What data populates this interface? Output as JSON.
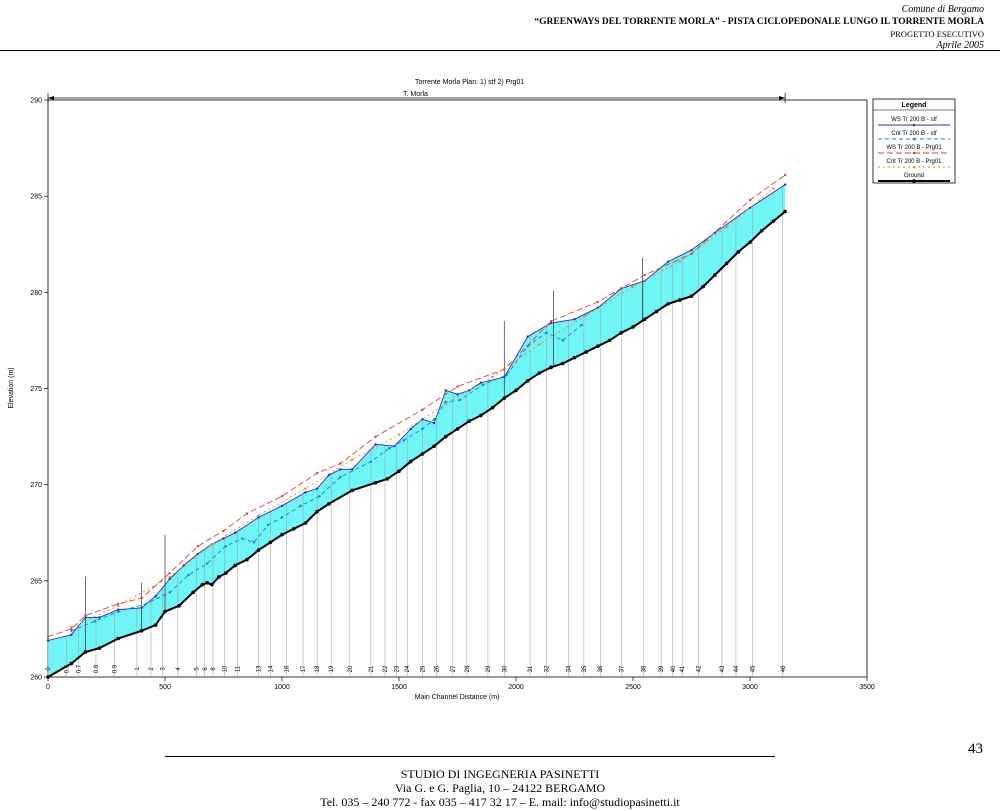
{
  "header": {
    "municipality": "Comune di Bergamo",
    "project_title": "“GREENWAYS DEL TORRENTE MORLA” - PISTA CICLOPEDONALE LUNGO IL TORRENTE MORLA",
    "phase": "PROGETTO ESECUTIVO",
    "date": "Aprile 2005"
  },
  "page_number": "43",
  "footer": {
    "company": "STUDIO DI INGEGNERIA PASINETTI",
    "address": "Via G. e G. Paglia, 10 – 24122 BERGAMO",
    "contacts": "Tel. 035 – 240 772 - fax 035 – 417 32 17 – E. mail: info@studiopasinetti.it"
  },
  "chart_data": {
    "type": "line",
    "title": "Torrente Morla      Plan:    1) stf    2) Prg01",
    "reach_label": "T. Morla",
    "xlabel": "Main Channel Distance (m)",
    "ylabel": "Elevation (m)",
    "xlim": [
      0,
      3500
    ],
    "ylim": [
      260,
      290
    ],
    "x_ticks": [
      "0",
      "500",
      "1000",
      "1500",
      "2000",
      "2500",
      "3000",
      "3500"
    ],
    "y_ticks": [
      "260",
      "265",
      "270",
      "275",
      "280",
      "285",
      "290"
    ],
    "grid": false,
    "legend_position": "top-right",
    "legend_title": "Legend",
    "series": [
      {
        "name": "WS  Tr 200 B - stf",
        "color": "#2a2ac8",
        "x": [
          0,
          100,
          160,
          220,
          300,
          400,
          460,
          520,
          580,
          640,
          700,
          750,
          800,
          900,
          1000,
          1100,
          1150,
          1200,
          1250,
          1300,
          1400,
          1480,
          1550,
          1600,
          1650,
          1700,
          1750,
          1800,
          1850,
          1950,
          2050,
          2150,
          2250,
          2350,
          2450,
          2550,
          2650,
          2750,
          2850,
          3000,
          3150
        ],
        "y": [
          261.9,
          262.2,
          263.1,
          263.1,
          263.5,
          263.6,
          264.2,
          265.1,
          265.8,
          266.4,
          266.9,
          267.2,
          267.5,
          268.3,
          268.9,
          269.6,
          269.8,
          270.5,
          270.8,
          270.8,
          272.1,
          272.0,
          272.9,
          273.4,
          273.2,
          274.9,
          274.7,
          274.9,
          275.3,
          275.6,
          277.7,
          278.4,
          278.6,
          279.2,
          280.2,
          280.6,
          281.6,
          282.2,
          283.1,
          284.4,
          285.6
        ]
      },
      {
        "name": "Crit  Tr 200 B - stf",
        "color": "#1f7ccf",
        "dash": "4,3",
        "x": [
          100,
          200,
          300,
          420,
          520,
          600,
          680,
          760,
          830,
          880,
          940,
          1000,
          1080,
          1160,
          1250,
          1380,
          1460,
          1520,
          1600,
          1650,
          1700,
          1760,
          1860,
          1960,
          2050,
          2130,
          2200,
          2280
        ],
        "y": [
          262.4,
          262.9,
          263.4,
          263.8,
          264.4,
          265.3,
          265.9,
          266.8,
          267.2,
          267.0,
          267.9,
          268.3,
          268.9,
          269.4,
          270.4,
          271.2,
          271.9,
          272.3,
          272.9,
          273.4,
          274.3,
          274.4,
          275.2,
          275.7,
          277.2,
          277.9,
          277.5,
          278.3
        ]
      },
      {
        "name": "WS  Tr 200 B - Prg01",
        "color": "#d84040",
        "dash": "6,3",
        "x": [
          0,
          100,
          160,
          300,
          400,
          520,
          640,
          750,
          850,
          1000,
          1150,
          1250,
          1400,
          1600,
          1750,
          1950,
          2150,
          2350,
          2550,
          2750,
          3000,
          3150
        ],
        "y": [
          262.1,
          262.5,
          263.2,
          263.8,
          264.1,
          265.4,
          266.8,
          267.6,
          268.5,
          269.4,
          270.6,
          271.1,
          272.5,
          273.9,
          275.1,
          276.0,
          278.5,
          279.5,
          280.9,
          282.0,
          284.8,
          286.1
        ]
      },
      {
        "name": "Crit  Tr 200 B - Prg01",
        "color": "#e08a1a",
        "dash": "2,3",
        "x": [
          100,
          300,
          520,
          700,
          900,
          1100,
          1300,
          1500,
          1700,
          1900,
          2100,
          2300,
          2500,
          2700,
          2900,
          3100
        ],
        "y": [
          262.6,
          263.7,
          265.2,
          266.9,
          268.4,
          269.8,
          271.3,
          272.6,
          274.2,
          275.6,
          277.3,
          278.8,
          280.3,
          281.6,
          283.4,
          285.4
        ]
      },
      {
        "name": "Ground",
        "color": "#000000",
        "x": [
          0,
          100,
          160,
          220,
          300,
          400,
          460,
          500,
          560,
          620,
          660,
          680,
          700,
          730,
          760,
          800,
          850,
          900,
          950,
          1000,
          1050,
          1100,
          1150,
          1200,
          1300,
          1400,
          1450,
          1500,
          1550,
          1600,
          1650,
          1700,
          1750,
          1800,
          1850,
          1900,
          1950,
          2000,
          2050,
          2100,
          2150,
          2200,
          2250,
          2300,
          2350,
          2400,
          2450,
          2500,
          2550,
          2600,
          2650,
          2700,
          2750,
          2800,
          2850,
          2900,
          2950,
          3000,
          3050,
          3100,
          3150
        ],
        "y": [
          260.0,
          260.7,
          261.3,
          261.5,
          262.0,
          262.4,
          262.7,
          263.4,
          263.7,
          264.4,
          264.8,
          264.9,
          264.8,
          265.2,
          265.4,
          265.8,
          266.1,
          266.6,
          267.0,
          267.4,
          267.7,
          268.0,
          268.6,
          269.0,
          269.7,
          270.1,
          270.3,
          270.7,
          271.2,
          271.6,
          272.0,
          272.5,
          272.9,
          273.3,
          273.6,
          274.0,
          274.5,
          274.9,
          275.4,
          275.8,
          276.1,
          276.3,
          276.6,
          276.9,
          277.2,
          277.5,
          277.9,
          278.2,
          278.6,
          279.0,
          279.4,
          279.6,
          279.8,
          280.3,
          280.9,
          281.5,
          282.1,
          282.6,
          283.2,
          283.7,
          284.2
        ]
      }
    ],
    "cross_sections": [
      {
        "label": "0",
        "x": 0
      },
      {
        "label": "0.5",
        "x": 80
      },
      {
        "label": "0.7",
        "x": 130
      },
      {
        "label": "0.8",
        "x": 205
      },
      {
        "label": "0.9",
        "x": 285
      },
      {
        "label": "1",
        "x": 380
      },
      {
        "label": "2",
        "x": 440
      },
      {
        "label": "3",
        "x": 490
      },
      {
        "label": "4",
        "x": 555
      },
      {
        "label": "5",
        "x": 635
      },
      {
        "label": "6",
        "x": 670
      },
      {
        "label": "8",
        "x": 705
      },
      {
        "label": "10",
        "x": 755
      },
      {
        "label": "11",
        "x": 810
      },
      {
        "label": "13",
        "x": 900
      },
      {
        "label": "14",
        "x": 950
      },
      {
        "label": "16",
        "x": 1020
      },
      {
        "label": "17",
        "x": 1090
      },
      {
        "label": "18",
        "x": 1150
      },
      {
        "label": "19",
        "x": 1210
      },
      {
        "label": "20",
        "x": 1290
      },
      {
        "label": "21",
        "x": 1380
      },
      {
        "label": "22",
        "x": 1440
      },
      {
        "label": "23",
        "x": 1490
      },
      {
        "label": "24",
        "x": 1535
      },
      {
        "label": "25",
        "x": 1600
      },
      {
        "label": "26",
        "x": 1660
      },
      {
        "label": "27",
        "x": 1730
      },
      {
        "label": "28",
        "x": 1790
      },
      {
        "label": "29",
        "x": 1880
      },
      {
        "label": "30",
        "x": 1950
      },
      {
        "label": "31",
        "x": 2060
      },
      {
        "label": "32",
        "x": 2130
      },
      {
        "label": "34",
        "x": 2225
      },
      {
        "label": "35",
        "x": 2290
      },
      {
        "label": "36",
        "x": 2360
      },
      {
        "label": "37",
        "x": 2450
      },
      {
        "label": "38",
        "x": 2545
      },
      {
        "label": "39",
        "x": 2620
      },
      {
        "label": "40",
        "x": 2670
      },
      {
        "label": "41",
        "x": 2710
      },
      {
        "label": "42",
        "x": 2780
      },
      {
        "label": "43",
        "x": 2880
      },
      {
        "label": "44",
        "x": 2940
      },
      {
        "label": "45",
        "x": 3010
      },
      {
        "label": "46",
        "x": 3140
      }
    ],
    "bridges": [
      {
        "x": 160,
        "top": 265.2
      },
      {
        "x": 400,
        "top": 264.9
      },
      {
        "x": 500,
        "top": 267.4
      },
      {
        "x": 1950,
        "top": 278.5
      },
      {
        "x": 2160,
        "top": 280.1
      },
      {
        "x": 2540,
        "top": 281.8
      }
    ],
    "reach_span": [
      0,
      3150
    ]
  }
}
